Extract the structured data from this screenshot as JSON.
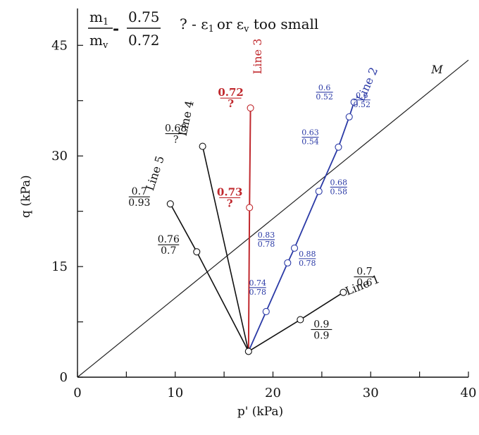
{
  "chart_data": {
    "type": "line",
    "xlabel": "p' (kPa)",
    "ylabel": "q (kPa)",
    "xlim": [
      0,
      40
    ],
    "ylim": [
      0,
      50
    ],
    "x_ticks": [
      0,
      10,
      20,
      30,
      40
    ],
    "y_ticks": [
      0,
      15,
      30,
      45
    ],
    "grid": false,
    "legend": {
      "m1": "m",
      "m1_sub": "1",
      "mv": "m",
      "mv_sub": "v",
      "separator": "-",
      "num": "0.75",
      "den": "0.72",
      "note_pre": "? - ε",
      "note_sub1": "1",
      "note_mid": "or ε",
      "note_sub2": "v",
      "note_post": " too small"
    },
    "origin_point": [
      17.5,
      3.5
    ],
    "critical_state_line": {
      "label": "M",
      "x": [
        0,
        40
      ],
      "y": [
        0,
        43
      ],
      "color": "#222222"
    },
    "series": [
      {
        "name": "Line 1",
        "color": "#111111",
        "x": [
          17.5,
          22.8,
          27.2
        ],
        "y": [
          3.5,
          7.8,
          11.5
        ],
        "ratios": [
          {
            "at": 1,
            "num": "0.9",
            "den": "0.9"
          },
          {
            "at": 2,
            "num": "0.7",
            "den": "0.6"
          }
        ]
      },
      {
        "name": "Line 2",
        "color": "#2b3aa6",
        "x": [
          17.5,
          19.3,
          21.5,
          22.2,
          24.7,
          26.7,
          27.8,
          28.3
        ],
        "y": [
          3.5,
          8.9,
          15.5,
          17.5,
          25.2,
          31.2,
          35.3,
          37.3
        ],
        "ratios": [
          {
            "at": 1,
            "num": "0.74",
            "den": "0.78"
          },
          {
            "at": 2,
            "num": "0.88",
            "den": "0.78"
          },
          {
            "at": 3,
            "num": "0.83",
            "den": "0.78"
          },
          {
            "at": 4,
            "num": "0.68",
            "den": "0.58"
          },
          {
            "at": 5,
            "num": "0.63",
            "den": "0.54"
          },
          {
            "at": 6,
            "num": "0.6",
            "den": "0.52"
          },
          {
            "at": 7,
            "num": "0.6",
            "den": "0.52"
          }
        ]
      },
      {
        "name": "Line 3",
        "color": "#c0282d",
        "x": [
          17.5,
          17.6,
          17.7
        ],
        "y": [
          3.5,
          23.0,
          36.5
        ],
        "ratios": [
          {
            "at": 1,
            "num": "0.73",
            "den": "?"
          },
          {
            "at": 2,
            "num": "0.72",
            "den": "?"
          }
        ]
      },
      {
        "name": "Line 4",
        "color": "#111111",
        "x": [
          17.5,
          12.8
        ],
        "y": [
          3.5,
          31.3
        ],
        "ratios": [
          {
            "at": 1,
            "num": "0.68",
            "den": "?"
          }
        ]
      },
      {
        "name": "Line 5",
        "color": "#111111",
        "x": [
          17.5,
          12.2,
          9.5
        ],
        "y": [
          3.5,
          17.0,
          23.5
        ],
        "ratios": [
          {
            "at": 1,
            "num": "0.76",
            "den": "0.7"
          },
          {
            "at": 2,
            "num": "0.7",
            "den": "0.93"
          }
        ]
      }
    ]
  }
}
